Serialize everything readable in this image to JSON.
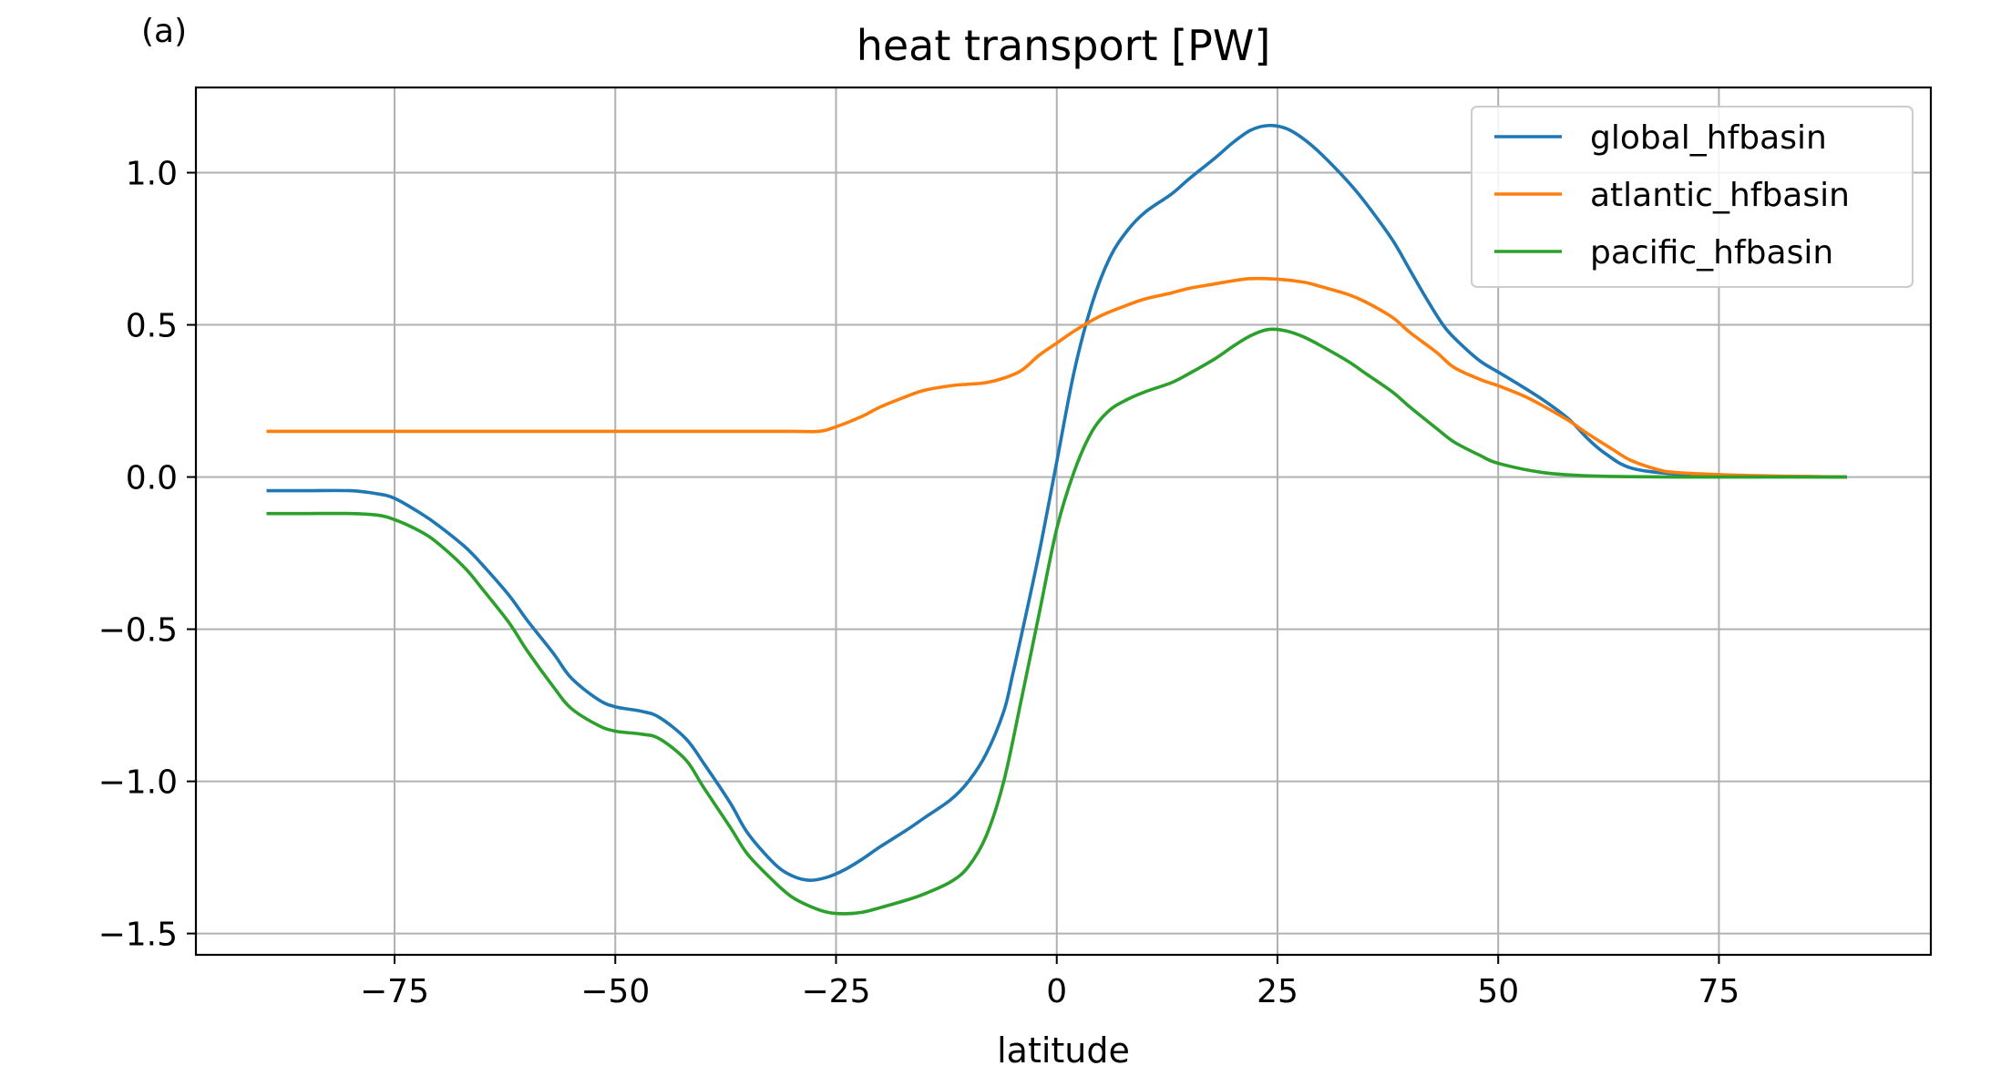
{
  "panel_label": "(a)",
  "chart_data": {
    "type": "line",
    "title": "heat transport [PW]",
    "xlabel": "latitude",
    "ylabel": "",
    "xlim": [
      -97.5,
      99
    ],
    "ylim": [
      -1.57,
      1.28
    ],
    "xticks": [
      -75,
      -50,
      -25,
      0,
      25,
      50,
      75
    ],
    "yticks": [
      -1.5,
      -1.0,
      -0.5,
      0.0,
      0.5,
      1.0
    ],
    "xtick_labels": [
      "−75",
      "−50",
      "−25",
      "0",
      "25",
      "50",
      "75"
    ],
    "ytick_labels": [
      "−1.5",
      "−1.0",
      "−0.5",
      "0.0",
      "0.5",
      "1.0"
    ],
    "grid": true,
    "legend_position": "top-right",
    "series": [
      {
        "name": "global_hfbasin",
        "color": "#1f77b4",
        "x": [
          -89.5,
          -85,
          -80,
          -77,
          -75,
          -72,
          -70,
          -67,
          -65,
          -62,
          -60,
          -57,
          -55,
          -52,
          -50,
          -47,
          -45,
          -42,
          -40,
          -37,
          -35,
          -32,
          -30,
          -28,
          -26,
          -24,
          -22,
          -20,
          -17,
          -15,
          -12,
          -10,
          -8,
          -6,
          -5,
          -4,
          -2,
          0,
          2,
          4,
          6,
          8,
          10,
          13,
          15,
          18,
          20,
          22,
          24,
          26,
          28,
          30,
          33,
          35,
          38,
          40,
          42,
          44,
          46,
          48,
          50,
          52,
          55,
          58,
          60,
          62,
          65,
          70,
          75,
          80,
          85,
          89.5
        ],
        "y": [
          -0.045,
          -0.045,
          -0.045,
          -0.055,
          -0.07,
          -0.12,
          -0.16,
          -0.23,
          -0.29,
          -0.39,
          -0.47,
          -0.58,
          -0.66,
          -0.73,
          -0.755,
          -0.77,
          -0.79,
          -0.86,
          -0.94,
          -1.07,
          -1.17,
          -1.27,
          -1.31,
          -1.325,
          -1.315,
          -1.29,
          -1.255,
          -1.215,
          -1.16,
          -1.12,
          -1.06,
          -1.0,
          -0.91,
          -0.77,
          -0.65,
          -0.52,
          -0.25,
          0.05,
          0.35,
          0.57,
          0.72,
          0.81,
          0.87,
          0.93,
          0.98,
          1.05,
          1.1,
          1.14,
          1.155,
          1.145,
          1.11,
          1.06,
          0.97,
          0.9,
          0.78,
          0.68,
          0.58,
          0.49,
          0.43,
          0.38,
          0.345,
          0.31,
          0.255,
          0.19,
          0.13,
          0.08,
          0.03,
          0.01,
          0.005,
          0.002,
          0.001,
          0.0
        ]
      },
      {
        "name": "atlantic_hfbasin",
        "color": "#ff7f0e",
        "x": [
          -89.5,
          -80,
          -70,
          -60,
          -50,
          -40,
          -30,
          -27,
          -25,
          -22,
          -20,
          -17,
          -15,
          -12,
          -10,
          -8,
          -6,
          -4,
          -2,
          0,
          2,
          5,
          8,
          10,
          13,
          15,
          18,
          20,
          22,
          25,
          28,
          30,
          33,
          35,
          38,
          40,
          43,
          45,
          48,
          50,
          53,
          55,
          58,
          60,
          63,
          65,
          68,
          70,
          75,
          80,
          85,
          89.5
        ],
        "y": [
          0.15,
          0.15,
          0.15,
          0.15,
          0.15,
          0.15,
          0.15,
          0.15,
          0.165,
          0.2,
          0.23,
          0.265,
          0.285,
          0.3,
          0.305,
          0.31,
          0.325,
          0.35,
          0.4,
          0.44,
          0.48,
          0.53,
          0.565,
          0.585,
          0.605,
          0.62,
          0.635,
          0.645,
          0.652,
          0.65,
          0.64,
          0.625,
          0.6,
          0.575,
          0.525,
          0.475,
          0.41,
          0.36,
          0.32,
          0.3,
          0.265,
          0.235,
          0.185,
          0.145,
          0.09,
          0.055,
          0.025,
          0.015,
          0.008,
          0.004,
          0.002,
          0.0
        ]
      },
      {
        "name": "pacific_hfbasin",
        "color": "#2ca02c",
        "x": [
          -89.5,
          -85,
          -80,
          -77,
          -75,
          -72,
          -70,
          -67,
          -65,
          -62,
          -60,
          -57,
          -55,
          -52,
          -50,
          -47,
          -45,
          -42,
          -40,
          -37,
          -35,
          -32,
          -30,
          -28,
          -26,
          -24,
          -22,
          -20,
          -17,
          -15,
          -12,
          -10,
          -8,
          -6,
          -4,
          -2,
          0,
          2,
          4,
          6,
          8,
          10,
          13,
          15,
          18,
          20,
          22,
          24,
          26,
          28,
          30,
          33,
          35,
          38,
          40,
          43,
          45,
          48,
          50,
          55,
          60,
          65,
          70,
          75,
          80,
          85,
          89.5
        ],
        "y": [
          -0.12,
          -0.12,
          -0.12,
          -0.125,
          -0.14,
          -0.18,
          -0.22,
          -0.3,
          -0.37,
          -0.48,
          -0.57,
          -0.69,
          -0.76,
          -0.815,
          -0.835,
          -0.845,
          -0.86,
          -0.93,
          -1.02,
          -1.15,
          -1.24,
          -1.33,
          -1.38,
          -1.41,
          -1.43,
          -1.435,
          -1.43,
          -1.415,
          -1.39,
          -1.37,
          -1.33,
          -1.28,
          -1.18,
          -1.0,
          -0.73,
          -0.45,
          -0.17,
          0.02,
          0.15,
          0.22,
          0.255,
          0.28,
          0.31,
          0.34,
          0.39,
          0.43,
          0.465,
          0.485,
          0.48,
          0.46,
          0.43,
          0.38,
          0.34,
          0.28,
          0.23,
          0.16,
          0.115,
          0.07,
          0.045,
          0.015,
          0.004,
          0.001,
          0.0,
          0.0,
          0.0,
          0.0,
          0.0
        ]
      }
    ]
  }
}
